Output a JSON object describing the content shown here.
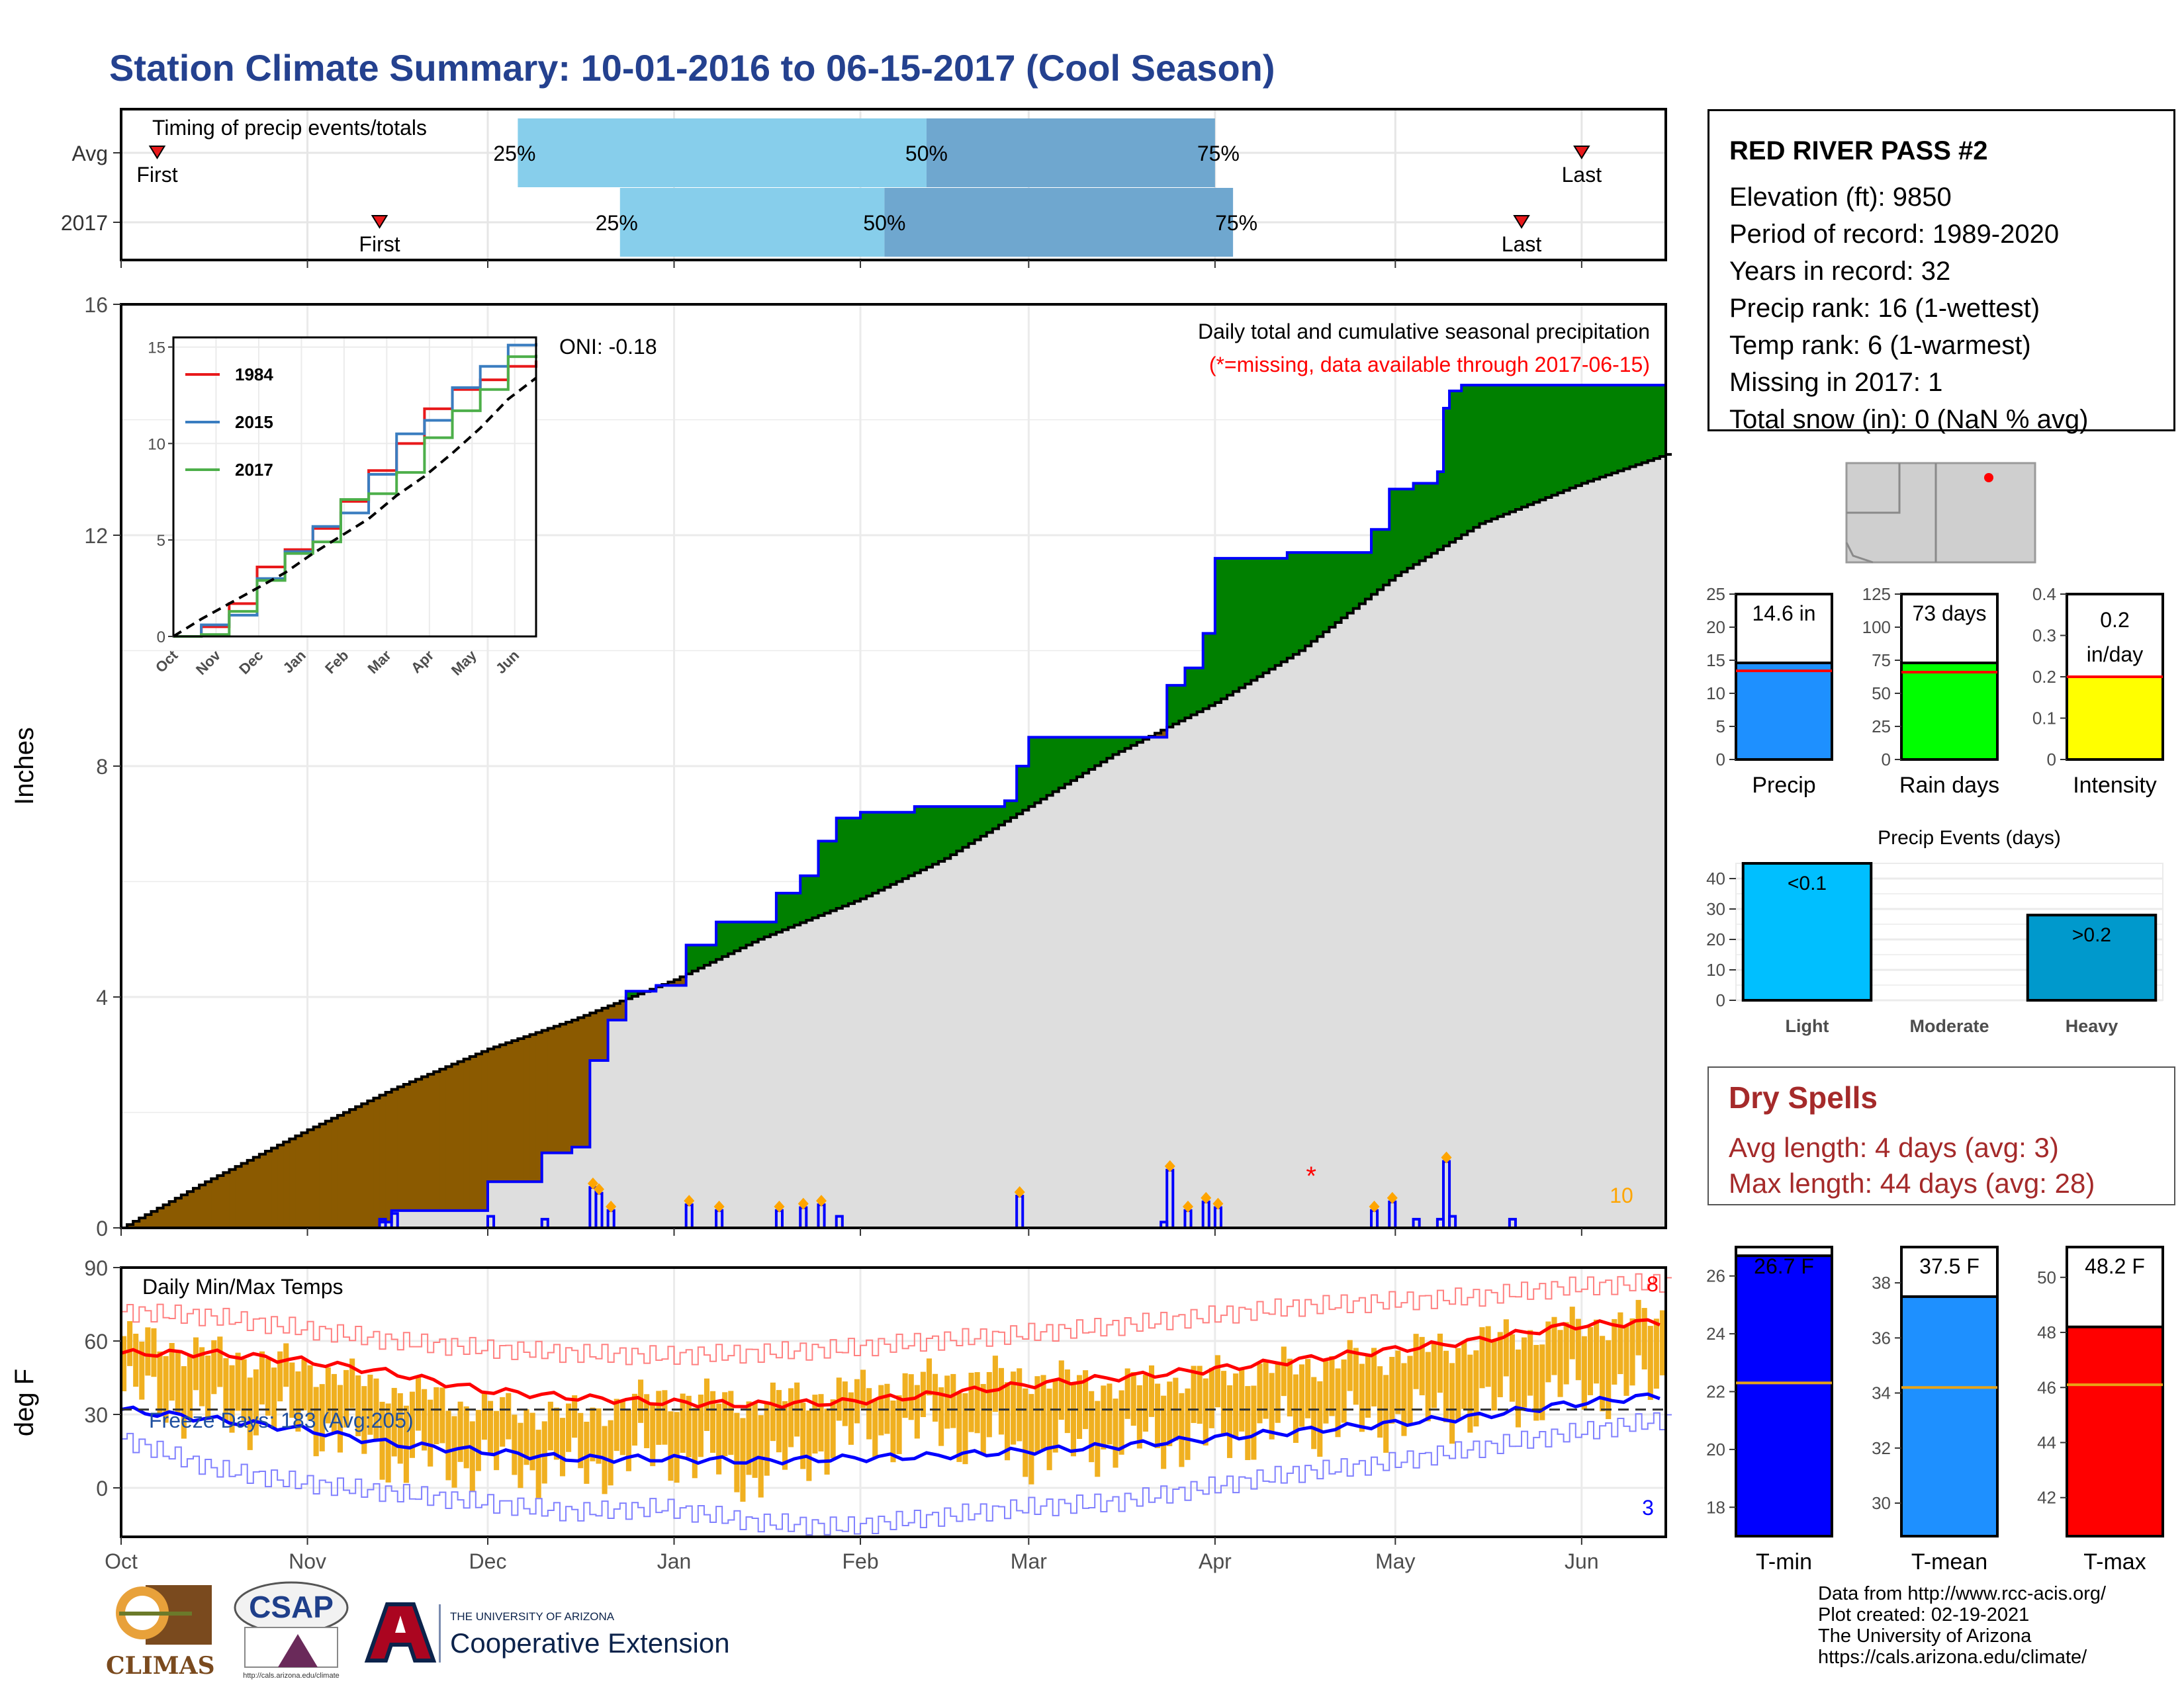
{
  "title": "Station Climate Summary: 10-01-2016 to 06-15-2017 (Cool Season)",
  "colors": {
    "title": "#24418f",
    "light_blue": "#87ceeb",
    "mid_blue": "#6fa7cf",
    "green": "#008000",
    "brown": "#8b5a00",
    "gray_fill": "#dedede",
    "precip_blue": "#1e90ff",
    "rain_green": "#00ff00",
    "intensity_yellow": "#ffff00",
    "light_events": "#00bfff",
    "heavy_events": "#0099cc",
    "tmin": "#0000ff",
    "tmean": "#1e90ff",
    "tmax": "#ff0000",
    "dry_spell": "#a52a2a",
    "bars_orange": "#f0b020"
  },
  "station": {
    "name": "RED RIVER PASS #2",
    "lines": [
      "Elevation (ft): 9850",
      "Period of record: 1989-2020",
      "Years in record: 32",
      "Precip rank: 16 (1-wettest)",
      "Temp rank: 6 (1-warmest)",
      "Missing in 2017: 1",
      "Total snow (in): 0 (NaN % avg)"
    ]
  },
  "dry_spells": {
    "title": "Dry Spells",
    "avg_line": "Avg length: 4 days (avg: 3)",
    "max_line": "Max length: 44 days (avg: 28)"
  },
  "credits": [
    "Data from http://www.rcc-acis.org/",
    "Plot created: 02-19-2021",
    "The University of Arizona",
    "https://cals.arizona.edu/climate/"
  ],
  "logos": {
    "climas": "CLIMAS",
    "csap": "CSAP",
    "csap_url": "http://cals.arizona.edu/climate",
    "ua_small": "THE UNIVERSITY OF ARIZONA",
    "ua_big": "Cooperative Extension"
  },
  "chart_data": [
    {
      "type": "timeline",
      "title": "Timing of precip events/totals",
      "rows": [
        {
          "label": "Avg",
          "first": "2016-10-07",
          "p25": "2016-12-06",
          "p50": "2017-02-12",
          "p75": "2017-04-01",
          "last": "2017-06-01"
        },
        {
          "label": "2017",
          "first": "2016-11-13",
          "p25": "2016-12-23",
          "p50": "2017-02-05",
          "p75": "2017-04-04",
          "last": "2017-05-22"
        }
      ],
      "labels": {
        "first": "First",
        "last": "Last",
        "p25": "25%",
        "p50": "50%",
        "p75": "75%"
      }
    },
    {
      "type": "area",
      "title": "Daily total and cumulative seasonal precipitation",
      "subtitle": "(*=missing, data available through 2017-06-15)",
      "annotation": "ONI: -0.18",
      "corner_count": "10",
      "ylabel": "Inches",
      "ylim": [
        0,
        16
      ],
      "yticks": [
        0,
        4,
        8,
        12,
        16
      ],
      "xlim": [
        "2016-10-01",
        "2017-06-15"
      ],
      "xticks": [
        "Oct",
        "Nov",
        "Dec",
        "Jan",
        "Feb",
        "Mar",
        "Apr",
        "May",
        "Jun"
      ],
      "avg_cumulative": {
        "x": [
          "2016-10-01",
          "2016-10-15",
          "2016-11-01",
          "2016-11-15",
          "2016-12-01",
          "2016-12-15",
          "2017-01-01",
          "2017-01-15",
          "2017-02-01",
          "2017-02-15",
          "2017-03-01",
          "2017-03-15",
          "2017-04-01",
          "2017-04-15",
          "2017-05-01",
          "2017-05-15",
          "2017-06-01",
          "2017-06-15"
        ],
        "y": [
          0,
          0.8,
          1.7,
          2.4,
          3.1,
          3.6,
          4.3,
          5.0,
          5.7,
          6.4,
          7.3,
          8.2,
          9.1,
          10.0,
          11.3,
          12.2,
          12.9,
          13.4
        ]
      },
      "cumulative_2017": {
        "x": [
          "2016-10-01",
          "2016-11-13",
          "2016-11-15",
          "2016-12-01",
          "2016-12-10",
          "2016-12-15",
          "2016-12-18",
          "2016-12-21",
          "2016-12-24",
          "2016-12-29",
          "2017-01-03",
          "2017-01-08",
          "2017-01-18",
          "2017-01-22",
          "2017-01-25",
          "2017-01-28",
          "2017-02-01",
          "2017-02-10",
          "2017-02-25",
          "2017-02-27",
          "2017-03-01",
          "2017-03-15",
          "2017-03-23",
          "2017-03-24",
          "2017-03-27",
          "2017-03-30",
          "2017-04-01",
          "2017-04-13",
          "2017-04-27",
          "2017-04-30",
          "2017-05-04",
          "2017-05-08",
          "2017-05-09",
          "2017-05-10",
          "2017-05-12",
          "2017-05-20",
          "2017-06-15"
        ],
        "y": [
          0,
          0.1,
          0.3,
          0.8,
          1.3,
          1.4,
          2.9,
          3.6,
          4.1,
          4.2,
          4.9,
          5.3,
          5.8,
          6.1,
          6.7,
          7.1,
          7.2,
          7.3,
          7.4,
          8.0,
          8.5,
          8.5,
          8.5,
          9.4,
          9.7,
          10.3,
          11.6,
          11.7,
          12.1,
          12.8,
          12.9,
          13.1,
          14.2,
          14.5,
          14.6,
          14.6,
          14.6
        ]
      },
      "daily_events": {
        "x": [
          "2016-11-13",
          "2016-11-15",
          "2016-12-01",
          "2016-12-10",
          "2016-12-18",
          "2016-12-19",
          "2016-12-21",
          "2017-01-03",
          "2017-01-08",
          "2017-01-18",
          "2017-01-22",
          "2017-01-25",
          "2017-01-28",
          "2017-02-27",
          "2017-03-23",
          "2017-03-24",
          "2017-03-27",
          "2017-03-30",
          "2017-04-01",
          "2017-04-27",
          "2017-04-30",
          "2017-05-04",
          "2017-05-08",
          "2017-05-09",
          "2017-05-10",
          "2017-05-20"
        ],
        "y": [
          0.15,
          0.25,
          0.2,
          0.15,
          0.7,
          0.6,
          0.3,
          0.4,
          0.3,
          0.3,
          0.35,
          0.4,
          0.2,
          0.55,
          0.1,
          1.0,
          0.3,
          0.45,
          0.35,
          0.3,
          0.45,
          0.15,
          0.15,
          1.15,
          0.2,
          0.15
        ]
      },
      "missing_marker": {
        "date": "2017-04-17",
        "value": 1.0,
        "symbol": "*"
      }
    },
    {
      "type": "line",
      "title": "",
      "annotation": "",
      "ylim": [
        0,
        15
      ],
      "yticks": [
        0,
        5,
        10,
        15
      ],
      "xticks": [
        "Oct",
        "Nov",
        "Dec",
        "Jan",
        "Feb",
        "Mar",
        "Apr",
        "May",
        "Jun"
      ],
      "series": [
        {
          "name": "1984",
          "color": "#e8191b",
          "values": [
            0,
            0.5,
            1.7,
            3.6,
            4.5,
            5.6,
            7.0,
            8.6,
            10.0,
            11.8,
            12.8,
            13.3,
            14.0,
            14.3
          ]
        },
        {
          "name": "2015",
          "color": "#3a7dc0",
          "values": [
            0,
            0.6,
            1.1,
            3.0,
            4.4,
            5.7,
            6.4,
            8.4,
            10.5,
            11.2,
            12.9,
            14.0,
            15.1,
            15.2
          ]
        },
        {
          "name": "2017",
          "color": "#4daf4a",
          "values": [
            0,
            0.1,
            1.3,
            2.9,
            4.3,
            4.9,
            7.1,
            7.4,
            8.5,
            10.3,
            11.7,
            12.8,
            14.5,
            14.6
          ]
        },
        {
          "name": "avg",
          "color": "#000000",
          "values": [
            0,
            0.9,
            1.7,
            2.5,
            3.3,
            4.3,
            5.2,
            6.1,
            7.3,
            8.3,
            9.5,
            10.8,
            12.3,
            13.4
          ]
        }
      ],
      "x": [
        "Oct 1",
        "Oct 20",
        "Nov 8",
        "Nov 27",
        "Dec 16",
        "Jan 4",
        "Jan 23",
        "Feb 11",
        "Mar 2",
        "Mar 21",
        "Apr 9",
        "Apr 28",
        "May 17",
        "Jun 15"
      ]
    },
    {
      "type": "bar",
      "panels": [
        {
          "category": "Precip",
          "value": 14.6,
          "avg": 13.4,
          "label": "14.6 in",
          "ylim": [
            0,
            25
          ],
          "yticks": [
            0,
            5,
            10,
            15,
            20,
            25
          ],
          "color": "#1e90ff"
        },
        {
          "category": "Rain days",
          "value": 73,
          "avg": 66,
          "label": "73 days",
          "ylim": [
            0,
            125
          ],
          "yticks": [
            0,
            25,
            50,
            75,
            100,
            125
          ],
          "color": "#00ff00"
        },
        {
          "category": "Intensity",
          "value": 0.2,
          "avg": 0.2,
          "label": "0.2 in/day",
          "label_lines": [
            "0.2",
            "in/day"
          ],
          "ylim": [
            0,
            0.4
          ],
          "yticks": [
            0.0,
            0.1,
            0.2,
            0.3,
            0.4
          ],
          "color": "#ffff00"
        }
      ]
    },
    {
      "type": "bar",
      "title": "Precip Events (days)",
      "categories": [
        "Light",
        "Moderate",
        "Heavy"
      ],
      "values": [
        45,
        0,
        28
      ],
      "bar_labels": [
        "<0.1",
        "",
        ">0.2"
      ],
      "ylim": [
        0,
        45
      ],
      "yticks": [
        0,
        10,
        20,
        30,
        40
      ]
    },
    {
      "type": "line",
      "title": "Daily Min/Max Temps",
      "annotation": "Freeze Days: 183 (Avg:205)",
      "ylabel": "deg F",
      "ylim": [
        -20,
        90
      ],
      "yticks": [
        0,
        30,
        60,
        90
      ],
      "freeze_line": 32,
      "max_count": "8",
      "min_count": "3",
      "xticks": [
        "Oct",
        "Nov",
        "Dec",
        "Jan",
        "Feb",
        "Mar",
        "Apr",
        "May",
        "Jun"
      ],
      "x_days": [
        0,
        15,
        30,
        45,
        60,
        75,
        90,
        105,
        120,
        135,
        150,
        165,
        180,
        195,
        210,
        225,
        240,
        257
      ],
      "series": [
        {
          "name": "avg max",
          "color": "#ff0000",
          "values": [
            55,
            55,
            52,
            47,
            40,
            37,
            35,
            34,
            35,
            38,
            42,
            45,
            48,
            52,
            56,
            60,
            66,
            68
          ]
        },
        {
          "name": "avg min",
          "color": "#0000ff",
          "values": [
            32,
            28,
            24,
            18,
            15,
            12,
            12,
            11,
            12,
            13,
            15,
            17,
            20,
            23,
            26,
            29,
            34,
            38
          ]
        },
        {
          "name": "record max",
          "color": "#ff8080",
          "values": [
            72,
            70,
            65,
            60,
            57,
            55,
            54,
            55,
            57,
            60,
            63,
            66,
            70,
            74,
            76,
            78,
            82,
            84
          ]
        },
        {
          "name": "record min",
          "color": "#8080ff",
          "values": [
            20,
            8,
            2,
            -2,
            -6,
            -10,
            -8,
            -14,
            -16,
            -12,
            -8,
            -6,
            0,
            6,
            10,
            16,
            22,
            28
          ]
        },
        {
          "name": "daily max 2017",
          "color": "#f0b020",
          "values": [
            62,
            55,
            50,
            40,
            33,
            30,
            38,
            35,
            40,
            45,
            46,
            42,
            46,
            50,
            54,
            60,
            66,
            70
          ]
        },
        {
          "name": "daily min 2017",
          "color": "#f0b020",
          "values": [
            40,
            30,
            28,
            12,
            10,
            8,
            15,
            5,
            20,
            25,
            14,
            18,
            20,
            25,
            28,
            32,
            40,
            42
          ]
        }
      ]
    },
    {
      "type": "bar",
      "panels": [
        {
          "category": "T-min",
          "value": 26.7,
          "avg": 22.3,
          "label": "26.7 F",
          "ylim": [
            17,
            27
          ],
          "yticks": [
            18,
            20,
            22,
            24,
            26
          ],
          "color": "#0000ff"
        },
        {
          "category": "T-mean",
          "value": 37.5,
          "avg": 34.2,
          "label": "37.5 F",
          "ylim": [
            28.8,
            39.3
          ],
          "yticks": [
            30,
            32,
            34,
            36,
            38
          ],
          "color": "#1e90ff"
        },
        {
          "category": "T-max",
          "value": 48.2,
          "avg": 46.1,
          "label": "48.2 F",
          "ylim": [
            40.6,
            51.1
          ],
          "yticks": [
            42,
            44,
            46,
            48,
            50
          ],
          "color": "#ff0000"
        }
      ]
    }
  ]
}
